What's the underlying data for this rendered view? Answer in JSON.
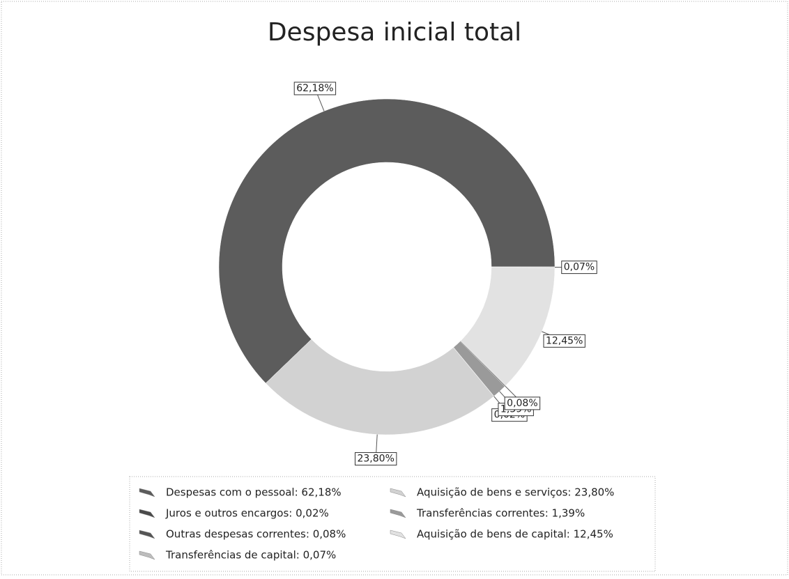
{
  "chart_data": {
    "type": "donut",
    "title": "Despesa inicial total",
    "categories": [
      "Despesas com o pessoal",
      "Aquisição  de bens e serviços",
      "Juros e outros encargos",
      "Transferências correntes",
      "Outras despesas correntes",
      "Aquisição de bens de capital",
      "Transferências de capital"
    ],
    "values": [
      62.18,
      23.8,
      0.02,
      1.39,
      0.08,
      12.45,
      0.07
    ],
    "value_labels": [
      "62,18%",
      "23,80%",
      "0,02%",
      "1,39%",
      "0,08%",
      "12,45%",
      "0,07%"
    ],
    "legend_labels": [
      "Despesas com o pessoal: 62,18%",
      "Aquisição  de bens e serviços: 23,80%",
      "Juros e outros encargos: 0,02%",
      "Transferências correntes: 1,39%",
      "Outras despesas correntes: 0,08%",
      "Aquisição de bens de capital: 12,45%",
      "Transferências de capital: 0,07%"
    ],
    "colors": [
      "#5c5c5c",
      "#d2d2d2",
      "#4a4a4a",
      "#9a9a9a",
      "#555555",
      "#e2e2e2",
      "#bdbdbd"
    ],
    "legend": "bottom"
  }
}
